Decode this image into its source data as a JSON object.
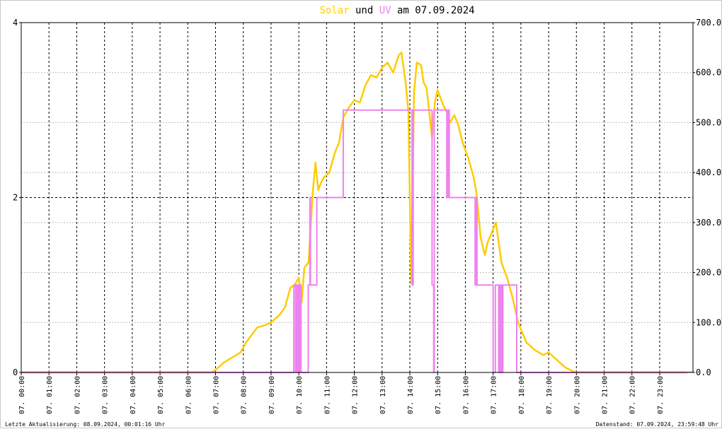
{
  "chart_data": {
    "type": "line",
    "title_parts": [
      {
        "text": "Solar",
        "color": "#ffd000"
      },
      {
        "text": " und ",
        "color": "#000000"
      },
      {
        "text": "UV",
        "color": "#ee82ee"
      },
      {
        "text": " am 07.09.2024",
        "color": "#000000"
      }
    ],
    "left_axis": {
      "ylim": [
        0,
        4
      ],
      "ticks": [
        "0",
        "2",
        "4"
      ]
    },
    "right_axis": {
      "ylim": [
        0,
        700
      ],
      "ticks": [
        "0.0",
        "100.0",
        "200.0",
        "300.0",
        "400.0",
        "500.0",
        "600.0",
        "700.0"
      ]
    },
    "x_labels": [
      "07. 00:00",
      "07. 01:00",
      "07. 02:00",
      "07. 03:00",
      "07. 04:00",
      "07. 05:00",
      "07. 06:00",
      "07. 07:00",
      "07. 08:00",
      "07. 09:00",
      "07. 10:00",
      "07. 11:00",
      "07. 12:00",
      "07. 13:00",
      "07. 14:00",
      "07. 15:00",
      "07. 16:00",
      "07. 17:00",
      "07. 18:00",
      "07. 19:00",
      "07. 20:00",
      "07. 21:00",
      "07. 22:00",
      "07. 23:00"
    ],
    "x_unit": "hour of day",
    "grid": true,
    "series": [
      {
        "name": "Solar",
        "axis": "right",
        "color": "#ffcc00",
        "x": [
          0,
          6.85,
          7.0,
          7.3,
          7.6,
          7.9,
          8.1,
          8.3,
          8.5,
          8.8,
          9.0,
          9.3,
          9.5,
          9.7,
          9.85,
          10.0,
          10.1,
          10.2,
          10.35,
          10.5,
          10.6,
          10.7,
          10.8,
          10.9,
          11.1,
          11.3,
          11.45,
          11.6,
          11.8,
          12.0,
          12.2,
          12.4,
          12.6,
          12.8,
          13.0,
          13.2,
          13.4,
          13.6,
          13.7,
          13.85,
          13.95,
          14.05,
          14.15,
          14.25,
          14.4,
          14.5,
          14.6,
          14.7,
          14.8,
          14.9,
          15.0,
          15.2,
          15.3,
          15.45,
          15.6,
          15.75,
          15.9,
          16.1,
          16.3,
          16.4,
          16.55,
          16.7,
          16.8,
          16.95,
          17.1,
          17.3,
          17.5,
          17.7,
          17.9,
          18.2,
          18.5,
          18.8,
          19.0,
          19.3,
          19.6,
          19.85,
          20.0,
          23.99
        ],
        "values": [
          0,
          0,
          5,
          20,
          30,
          40,
          60,
          75,
          90,
          95,
          100,
          115,
          130,
          170,
          175,
          190,
          140,
          210,
          220,
          360,
          420,
          365,
          380,
          390,
          400,
          440,
          460,
          510,
          530,
          545,
          540,
          575,
          595,
          590,
          610,
          620,
          600,
          635,
          640,
          580,
          520,
          180,
          560,
          620,
          615,
          580,
          570,
          520,
          470,
          540,
          565,
          535,
          525,
          500,
          515,
          495,
          460,
          430,
          390,
          360,
          270,
          235,
          260,
          280,
          300,
          220,
          190,
          150,
          100,
          60,
          45,
          35,
          40,
          25,
          10,
          3,
          0,
          0
        ]
      },
      {
        "name": "UV",
        "axis": "left",
        "color": "#ee82ee",
        "x": [
          0,
          9.8,
          9.82,
          9.88,
          9.9,
          9.93,
          9.95,
          9.98,
          10.0,
          10.02,
          10.06,
          10.08,
          10.32,
          10.34,
          10.4,
          10.42,
          10.6,
          10.65,
          11.55,
          11.6,
          14.05,
          14.08,
          14.12,
          14.15,
          14.78,
          14.8,
          14.86,
          14.88,
          15.3,
          15.33,
          15.38,
          15.42,
          16.3,
          16.35,
          16.38,
          16.42,
          16.98,
          17.0,
          17.08,
          17.1,
          17.2,
          17.25,
          17.3,
          17.35,
          17.8,
          17.85,
          23.99
        ],
        "values": [
          0,
          0,
          1,
          0,
          1,
          0,
          1,
          0,
          1,
          0,
          1,
          0,
          0,
          1,
          2,
          1,
          1,
          2,
          2,
          3,
          3,
          1,
          3,
          3,
          3,
          1,
          0,
          3,
          3,
          2,
          3,
          2,
          2,
          1,
          2,
          1,
          1,
          0,
          1,
          1,
          0,
          1,
          0,
          1,
          1,
          0,
          0
        ]
      }
    ],
    "footer_left": "Letzte Aktualisierung: 08.09.2024, 00:01:16 Uhr",
    "footer_right": "Datenstand: 07.09.2024, 23:59:48 Uhr"
  }
}
